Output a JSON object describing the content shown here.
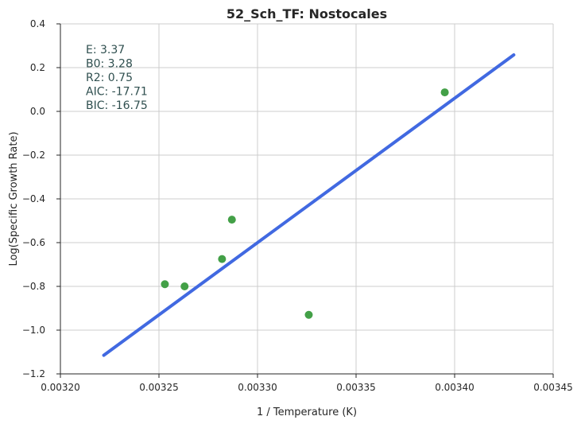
{
  "chart_data": {
    "type": "scatter",
    "title": "52_Sch_TF: Nostocales",
    "xlabel": "1 / Temperature (K)",
    "ylabel": "Log(Specific Growth Rate)",
    "xlim": [
      0.0032,
      0.00345
    ],
    "ylim": [
      -1.2,
      0.4
    ],
    "xticks": [
      0.0032,
      0.00325,
      0.0033,
      0.00335,
      0.0034,
      0.00345
    ],
    "xtick_labels": [
      "0.00320",
      "0.00325",
      "0.00330",
      "0.00335",
      "0.00340",
      "0.00345"
    ],
    "yticks": [
      -1.2,
      -1.0,
      -0.8,
      -0.6,
      -0.4,
      -0.2,
      0.0,
      0.2,
      0.4
    ],
    "ytick_labels": [
      "−1.2",
      "−1.0",
      "−0.8",
      "−0.6",
      "−0.4",
      "−0.2",
      "0.0",
      "0.2",
      "0.4"
    ],
    "grid": true,
    "points": {
      "color": "#43a047",
      "x": [
        0.003253,
        0.003263,
        0.003282,
        0.003287,
        0.003326,
        0.003395
      ],
      "y": [
        -0.79,
        -0.8,
        -0.675,
        -0.495,
        -0.93,
        0.087
      ]
    },
    "fit_line": {
      "color": "#4169e1",
      "x": [
        0.003222,
        0.00343
      ],
      "y": [
        -1.115,
        0.258
      ]
    },
    "annotations": [
      "E:  3.37",
      "B0:  3.28",
      "R2:  0.75",
      "AIC: -17.71",
      "BIC: -16.75"
    ]
  }
}
